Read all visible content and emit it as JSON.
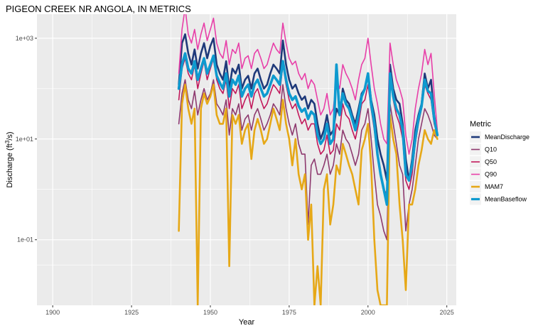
{
  "chart_data": {
    "type": "line",
    "title": "PIGEON CREEK NR ANGOLA, IN  METRICS",
    "xlabel": "Year",
    "ylabel": "Discharge (ft³/s)",
    "y_scale": "log10",
    "xlim": [
      1895,
      2028
    ],
    "ylim": [
      0.005,
      3000
    ],
    "x_ticks": [
      1900,
      1925,
      1950,
      1975,
      2000,
      2025
    ],
    "y_ticks": [
      {
        "value": 0.1,
        "label": "1e-01"
      },
      {
        "value": 10,
        "label": "1e+01"
      },
      {
        "value": 1000,
        "label": "1e+03"
      }
    ],
    "grid": true,
    "background": "#EBEBEB",
    "legend": {
      "title": "Metric",
      "position": "right"
    },
    "series": [
      {
        "name": "MeanDischarge",
        "color": "#1F3A7A",
        "x": [
          1940,
          1941,
          1942,
          1943,
          1944,
          1945,
          1946,
          1947,
          1948,
          1949,
          1950,
          1951,
          1952,
          1953,
          1954,
          1955,
          1956,
          1957,
          1958,
          1959,
          1960,
          1961,
          1962,
          1963,
          1964,
          1965,
          1966,
          1967,
          1968,
          1969,
          1970,
          1971,
          1972,
          1973,
          1974,
          1975,
          1976,
          1977,
          1978,
          1979,
          1980,
          1981,
          1982,
          1983,
          1984,
          1985,
          1986,
          1987,
          1988,
          1989,
          1990,
          1991,
          1992,
          1993,
          1994,
          1995,
          1996,
          1997,
          1998,
          1999,
          2000,
          2001,
          2002,
          2003,
          2004,
          2005,
          2006,
          2007,
          2008,
          2009,
          2010,
          2011,
          2012,
          2013,
          2014,
          2015,
          2016,
          2017,
          2018,
          2019,
          2020,
          2021,
          2022
        ],
        "y": [
          120,
          800,
          1200,
          500,
          300,
          600,
          250,
          500,
          800,
          400,
          700,
          1000,
          300,
          200,
          150,
          350,
          100,
          250,
          200,
          300,
          100,
          150,
          180,
          100,
          200,
          250,
          150,
          100,
          120,
          200,
          300,
          250,
          200,
          900,
          300,
          150,
          100,
          120,
          80,
          60,
          70,
          40,
          60,
          50,
          20,
          10,
          15,
          30,
          12,
          15,
          40,
          30,
          100,
          60,
          50,
          30,
          20,
          40,
          80,
          100,
          200,
          60,
          30,
          10,
          5,
          3,
          1.5,
          300,
          100,
          60,
          50,
          20,
          4,
          1.5,
          4,
          15,
          30,
          50,
          200,
          100,
          150,
          30,
          12
        ]
      },
      {
        "name": "Q10",
        "color": "#8E3A6F",
        "x": [
          1940,
          1941,
          1942,
          1943,
          1944,
          1945,
          1946,
          1947,
          1948,
          1949,
          1950,
          1951,
          1952,
          1953,
          1954,
          1955,
          1956,
          1957,
          1958,
          1959,
          1960,
          1961,
          1962,
          1963,
          1964,
          1965,
          1966,
          1967,
          1968,
          1969,
          1970,
          1971,
          1972,
          1973,
          1974,
          1975,
          1976,
          1977,
          1978,
          1979,
          1980,
          1981,
          1982,
          1983,
          1984,
          1985,
          1986,
          1987,
          1988,
          1989,
          1990,
          1991,
          1992,
          1993,
          1994,
          1995,
          1996,
          1997,
          1998,
          1999,
          2000,
          2001,
          2002,
          2003,
          2004,
          2005,
          2006,
          2007,
          2008,
          2009,
          2010,
          2011,
          2012,
          2013,
          2014,
          2015,
          2016,
          2017,
          2018,
          2019,
          2020,
          2021,
          2022
        ],
        "y": [
          20,
          80,
          150,
          60,
          40,
          90,
          30,
          60,
          100,
          60,
          80,
          150,
          50,
          40,
          30,
          60,
          12,
          40,
          30,
          50,
          15,
          25,
          30,
          15,
          30,
          40,
          25,
          15,
          20,
          30,
          50,
          40,
          30,
          120,
          40,
          20,
          12,
          20,
          8,
          5,
          5,
          0.2,
          3,
          4,
          2,
          2,
          3,
          5,
          2,
          3,
          8,
          5,
          15,
          10,
          8,
          5,
          3,
          5,
          15,
          20,
          40,
          10,
          2,
          0.5,
          0.3,
          0.15,
          0.1,
          50,
          20,
          8,
          3,
          2,
          0.15,
          0.5,
          1,
          3,
          10,
          20,
          40,
          30,
          20,
          12,
          10
        ]
      },
      {
        "name": "Q50",
        "color": "#C2185B",
        "x": [
          1940,
          1941,
          1942,
          1943,
          1944,
          1945,
          1946,
          1947,
          1948,
          1949,
          1950,
          1951,
          1952,
          1953,
          1954,
          1955,
          1956,
          1957,
          1958,
          1959,
          1960,
          1961,
          1962,
          1963,
          1964,
          1965,
          1966,
          1967,
          1968,
          1969,
          1970,
          1971,
          1972,
          1973,
          1974,
          1975,
          1976,
          1977,
          1978,
          1979,
          1980,
          1981,
          1982,
          1983,
          1984,
          1985,
          1986,
          1987,
          1988,
          1989,
          1990,
          1991,
          1992,
          1993,
          1994,
          1995,
          1996,
          1997,
          1998,
          1999,
          2000,
          2001,
          2002,
          2003,
          2004,
          2005,
          2006,
          2007,
          2008,
          2009,
          2010,
          2011,
          2012,
          2013,
          2014,
          2015,
          2016,
          2017,
          2018,
          2019,
          2020,
          2021,
          2022
        ],
        "y": [
          60,
          250,
          400,
          200,
          150,
          300,
          100,
          200,
          350,
          150,
          250,
          400,
          150,
          100,
          80,
          150,
          40,
          100,
          80,
          120,
          40,
          60,
          80,
          40,
          80,
          100,
          60,
          40,
          50,
          80,
          120,
          100,
          80,
          300,
          120,
          60,
          40,
          50,
          30,
          20,
          25,
          15,
          20,
          20,
          8,
          5,
          6,
          12,
          5,
          6,
          20,
          15,
          50,
          30,
          25,
          15,
          10,
          20,
          50,
          60,
          120,
          40,
          15,
          5,
          2,
          1,
          0.8,
          150,
          60,
          30,
          20,
          10,
          1.5,
          1,
          2,
          8,
          20,
          40,
          120,
          80,
          60,
          20,
          12
        ]
      },
      {
        "name": "Q90",
        "color": "#E83FA8",
        "x": [
          1940,
          1941,
          1942,
          1943,
          1944,
          1945,
          1946,
          1947,
          1948,
          1949,
          1950,
          1951,
          1952,
          1953,
          1954,
          1955,
          1956,
          1957,
          1958,
          1959,
          1960,
          1961,
          1962,
          1963,
          1964,
          1965,
          1966,
          1967,
          1968,
          1969,
          1970,
          1971,
          1972,
          1973,
          1974,
          1975,
          1976,
          1977,
          1978,
          1979,
          1980,
          1981,
          1982,
          1983,
          1984,
          1985,
          1986,
          1987,
          1988,
          1989,
          1990,
          1991,
          1992,
          1993,
          1994,
          1995,
          1996,
          1997,
          1998,
          1999,
          2000,
          2001,
          2002,
          2003,
          2004,
          2005,
          2006,
          2007,
          2008,
          2009,
          2010,
          2011,
          2012,
          2013,
          2014,
          2015,
          2016,
          2017,
          2018,
          2019,
          2020,
          2021,
          2022
        ],
        "y": [
          200,
          1500,
          4000,
          1200,
          800,
          1500,
          600,
          1200,
          2000,
          900,
          1500,
          2500,
          800,
          500,
          400,
          900,
          300,
          600,
          500,
          800,
          250,
          400,
          450,
          250,
          500,
          600,
          400,
          250,
          300,
          500,
          800,
          600,
          500,
          2000,
          800,
          400,
          300,
          350,
          200,
          150,
          200,
          100,
          150,
          120,
          60,
          30,
          40,
          80,
          30,
          40,
          150,
          100,
          300,
          200,
          150,
          100,
          60,
          150,
          300,
          400,
          1000,
          300,
          100,
          50,
          20,
          10,
          8,
          800,
          300,
          150,
          100,
          60,
          12,
          5,
          10,
          40,
          100,
          200,
          600,
          300,
          500,
          80,
          15
        ]
      },
      {
        "name": "MAM7",
        "color": "#E6A817",
        "x": [
          1940,
          1941,
          1942,
          1943,
          1944,
          1945,
          1946,
          1947,
          1948,
          1949,
          1950,
          1951,
          1952,
          1953,
          1954,
          1955,
          1956,
          1957,
          1958,
          1959,
          1960,
          1961,
          1962,
          1963,
          1964,
          1965,
          1966,
          1967,
          1968,
          1969,
          1970,
          1971,
          1972,
          1973,
          1974,
          1975,
          1976,
          1977,
          1978,
          1979,
          1980,
          1981,
          1982,
          1983,
          1984,
          1985,
          1986,
          1987,
          1988,
          1989,
          1990,
          1991,
          1992,
          1993,
          1994,
          1995,
          1996,
          1997,
          1998,
          1999,
          2000,
          2001,
          2002,
          2003,
          2004,
          2005,
          2006,
          2007,
          2008,
          2009,
          2010,
          2011,
          2012,
          2013,
          2014,
          2015,
          2016,
          2017,
          2018,
          2019,
          2020,
          2021,
          2022
        ],
        "y": [
          0.15,
          50,
          120,
          40,
          20,
          40,
          0.005,
          40,
          80,
          50,
          70,
          120,
          30,
          20,
          20,
          40,
          0.03,
          30,
          20,
          30,
          8,
          15,
          20,
          4,
          15,
          25,
          15,
          8,
          10,
          20,
          40,
          25,
          15,
          60,
          20,
          10,
          3,
          10,
          2,
          1,
          2,
          0.1,
          0.5,
          0.005,
          0.03,
          0.005,
          1,
          2,
          0.2,
          0.5,
          3,
          2,
          8,
          5,
          3,
          2,
          1,
          0.5,
          6,
          10,
          20,
          3,
          0.1,
          0.01,
          0.005,
          0.005,
          0.005,
          30,
          10,
          5,
          0.5,
          0.1,
          0.01,
          0.5,
          0.5,
          1,
          3,
          6,
          15,
          10,
          8,
          15,
          10
        ]
      },
      {
        "name": "MeanBaseflow",
        "color": "#0E9ACF",
        "x": [
          1940,
          1941,
          1942,
          1943,
          1944,
          1945,
          1946,
          1947,
          1948,
          1949,
          1950,
          1951,
          1952,
          1953,
          1954,
          1955,
          1956,
          1957,
          1958,
          1959,
          1960,
          1961,
          1962,
          1963,
          1964,
          1965,
          1966,
          1967,
          1968,
          1969,
          1970,
          1971,
          1972,
          1973,
          1974,
          1975,
          1976,
          1977,
          1978,
          1979,
          1980,
          1981,
          1982,
          1983,
          1984,
          1985,
          1986,
          1987,
          1988,
          1989,
          1990,
          1991,
          1992,
          1993,
          1994,
          1995,
          1996,
          1997,
          1998,
          1999,
          2000,
          2001,
          2002,
          2003,
          2004,
          2005,
          2006,
          2007,
          2008,
          2009,
          2010,
          2011,
          2012,
          2013,
          2014,
          2015,
          2016,
          2017,
          2018,
          2019,
          2020,
          2021,
          2022
        ],
        "y": [
          100,
          300,
          500,
          250,
          200,
          350,
          150,
          250,
          400,
          200,
          300,
          450,
          180,
          130,
          100,
          200,
          70,
          150,
          120,
          180,
          70,
          100,
          120,
          70,
          120,
          150,
          100,
          70,
          80,
          120,
          180,
          150,
          120,
          350,
          150,
          80,
          60,
          70,
          45,
          35,
          40,
          25,
          35,
          30,
          12,
          8,
          10,
          20,
          8,
          10,
          300,
          30,
          80,
          50,
          40,
          25,
          15,
          30,
          70,
          100,
          200,
          50,
          20,
          5,
          2,
          1,
          0.5,
          200,
          70,
          40,
          30,
          15,
          2,
          1.5,
          3,
          10,
          25,
          45,
          150,
          90,
          80,
          25,
          12
        ]
      }
    ]
  }
}
